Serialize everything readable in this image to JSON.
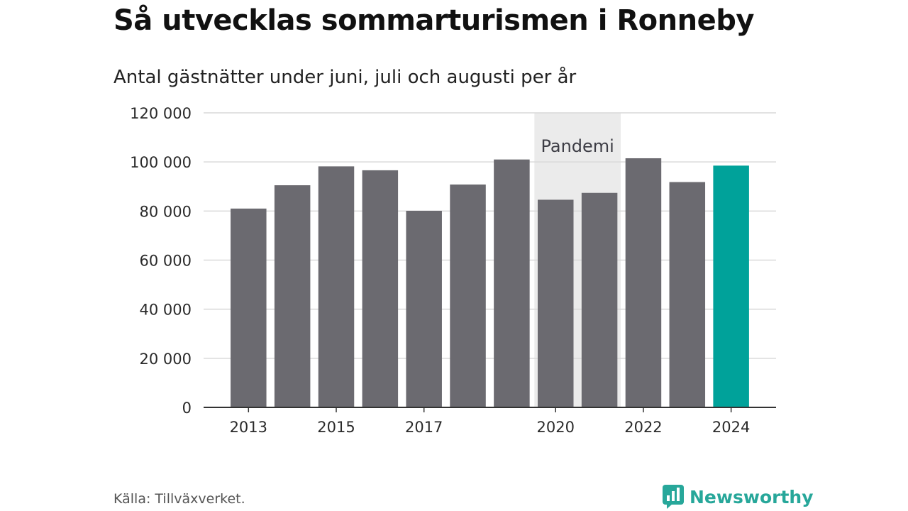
{
  "header": {
    "title": "Så utvecklas sommarturismen i Ronneby",
    "subtitle": "Antal gästnätter under juni, juli och augusti per år"
  },
  "footer": {
    "source": "Källa: Tillväxverket.",
    "brand": "Newsworthy",
    "brand_icon": "bar-chart-bubble-icon"
  },
  "colors": {
    "bar": "#6b6a70",
    "highlight": "#00a29a",
    "band": "#ebebeb",
    "grid": "#d9d9d9",
    "axis": "#333333",
    "brand": "#27a79a"
  },
  "chart_data": {
    "type": "bar",
    "categories": [
      "2013",
      "2014",
      "2015",
      "2016",
      "2017",
      "2018",
      "2019",
      "2020",
      "2021",
      "2022",
      "2023",
      "2024"
    ],
    "values": [
      81000,
      90500,
      98200,
      96600,
      80100,
      90800,
      101000,
      84600,
      87400,
      101500,
      91800,
      98500
    ],
    "highlight_category": "2024",
    "xtick_labels": [
      "2013",
      "2015",
      "2017",
      "2020",
      "2022",
      "2024"
    ],
    "ylim": [
      0,
      120000
    ],
    "yticks": [
      0,
      20000,
      40000,
      60000,
      80000,
      100000,
      120000
    ],
    "ytick_labels": [
      "0",
      "20 000",
      "40 000",
      "60 000",
      "80 000",
      "100 000",
      "120 000"
    ],
    "grid": true,
    "annotations": [
      {
        "text": "Pandemi",
        "x_start": "2020",
        "x_end": "2021"
      }
    ],
    "xlabel": "",
    "ylabel": ""
  }
}
